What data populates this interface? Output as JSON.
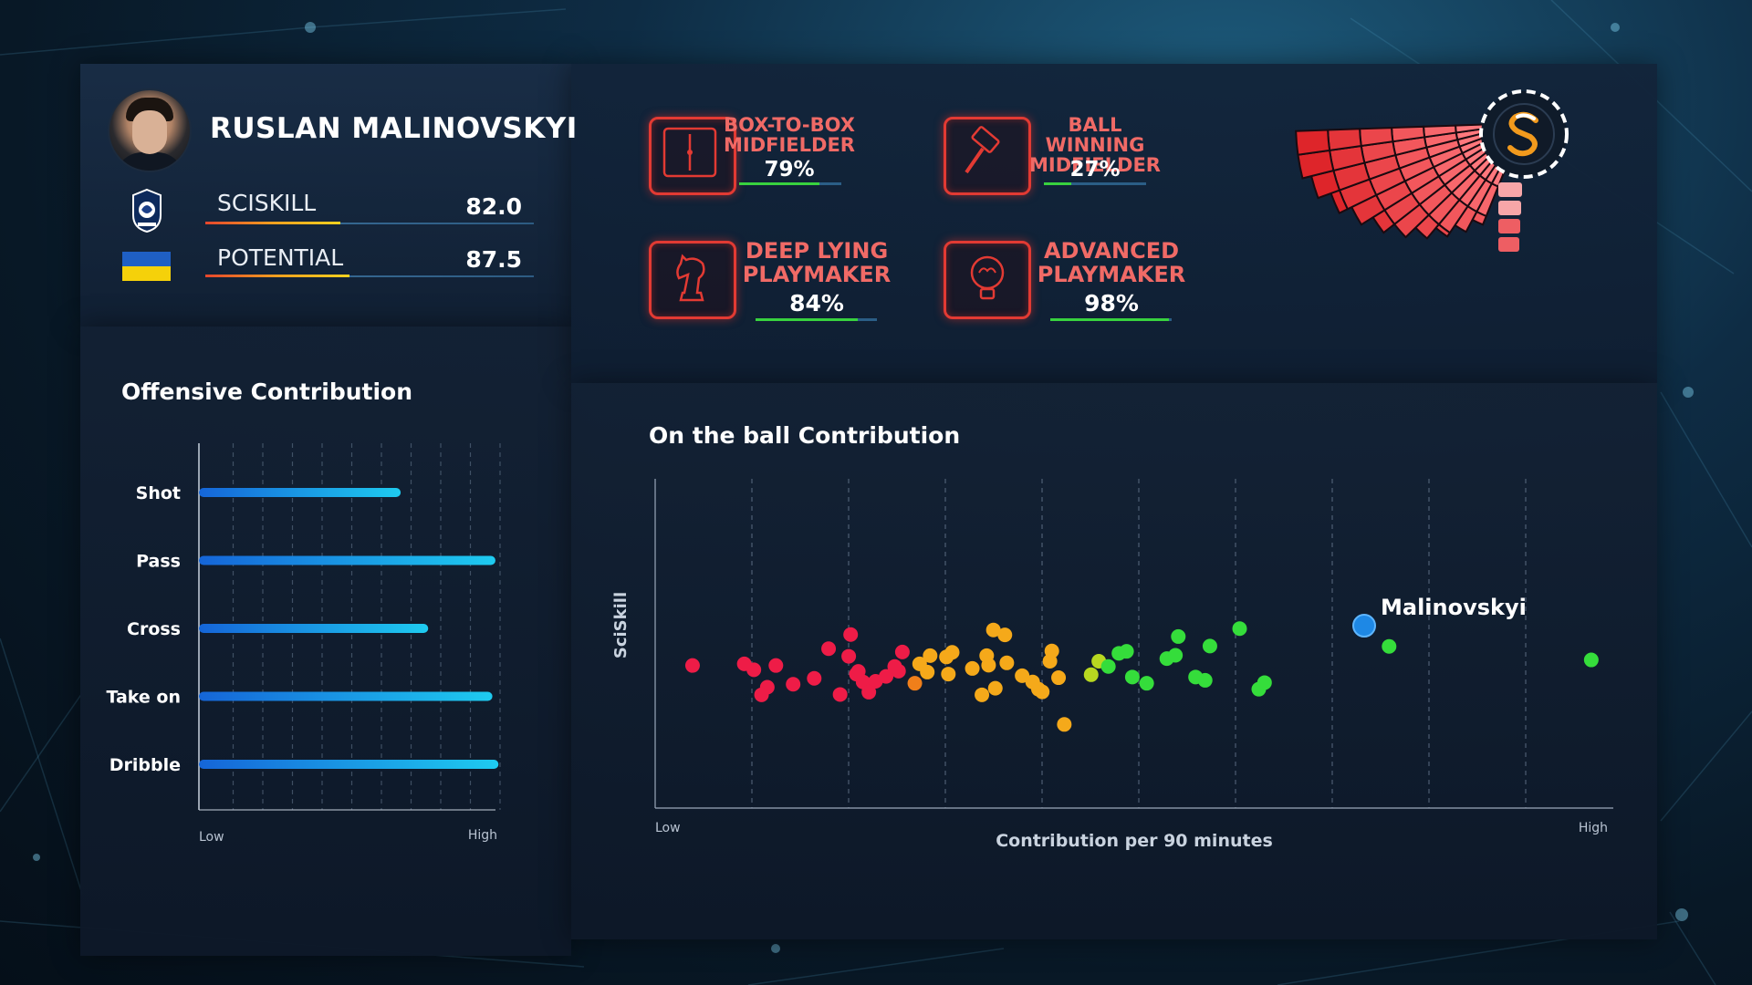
{
  "player": {
    "name": "RUSLAN MALINOVSKYI",
    "club_badge_icon": "atalanta-crest-icon",
    "flag_icon": "ukraine-flag-icon",
    "stats": [
      {
        "label": "SCISKILL",
        "value": "82.0",
        "level": 0.41
      },
      {
        "label": "POTENTIAL",
        "value": "87.5",
        "level": 0.44
      }
    ]
  },
  "roles": [
    {
      "title_line1": "BOX-TO-BOX",
      "title_line2": "MIDFIELDER",
      "percent": "79%",
      "level": 0.79,
      "icon": "box-to-box-icon"
    },
    {
      "title_line1": "BALL WINNING",
      "title_line2": "MIDFIELDER",
      "percent": "27%",
      "level": 0.27,
      "icon": "hammer-icon"
    },
    {
      "title_line1": "DEEP LYING",
      "title_line2": "PLAYMAKER",
      "percent": "84%",
      "level": 0.84,
      "icon": "chess-knight-icon"
    },
    {
      "title_line1": "ADVANCED",
      "title_line2": "PLAYMAKER",
      "percent": "98%",
      "level": 0.98,
      "icon": "brain-bulb-icon"
    }
  ],
  "logo_icon": "sciskill-logo-icon",
  "chart_data": [
    {
      "type": "bar",
      "orientation": "horizontal",
      "title": "Offensive Contribution",
      "categories": [
        "Shot",
        "Pass",
        "Cross",
        "Take on",
        "Dribble"
      ],
      "values": [
        0.66,
        0.97,
        0.75,
        0.96,
        0.98
      ],
      "xlim": [
        0,
        1
      ],
      "x_tick_labels": [
        "Low",
        "High"
      ],
      "grid": "vertical dashed",
      "color": "#1aa3e8"
    },
    {
      "type": "scatter",
      "title": "On the ball Contribution",
      "xlabel": "Contribution per 90 minutes",
      "ylabel": "SciSkill",
      "x_tick_labels": [
        "Low",
        "High"
      ],
      "xlim": [
        0,
        100
      ],
      "ylim": [
        0,
        100
      ],
      "grid": "vertical dashed",
      "highlight": {
        "name": "Malinovskyi",
        "x": 74.0,
        "y": 55.4,
        "color": "#1e88e5"
      },
      "series": [
        {
          "color": "#ee1c47",
          "points": [
            [
              3.9,
              43.3
            ],
            [
              9.3,
              43.8
            ],
            [
              12.6,
              43.3
            ],
            [
              10.3,
              42.0
            ],
            [
              11.7,
              36.7
            ],
            [
              11.1,
              34.4
            ],
            [
              14.4,
              37.6
            ],
            [
              16.6,
              39.4
            ],
            [
              18.1,
              48.4
            ],
            [
              19.3,
              34.5
            ],
            [
              20.2,
              46.1
            ],
            [
              21.2,
              41.5
            ],
            [
              20.4,
              52.7
            ],
            [
              21.7,
              38.3
            ],
            [
              21.0,
              40.7
            ],
            [
              23.0,
              38.5
            ],
            [
              22.3,
              35.2
            ],
            [
              24.1,
              40.0
            ],
            [
              25.4,
              41.6
            ],
            [
              25.0,
              43.0
            ],
            [
              25.8,
              47.4
            ]
          ]
        },
        {
          "color": "#f5a91a",
          "points": [
            [
              27.6,
              43.8
            ],
            [
              28.7,
              46.3
            ],
            [
              28.4,
              41.3
            ],
            [
              30.4,
              45.9
            ],
            [
              30.6,
              40.7
            ],
            [
              31.0,
              47.3
            ],
            [
              33.1,
              42.4
            ],
            [
              34.6,
              46.3
            ],
            [
              34.8,
              43.4
            ],
            [
              34.1,
              34.4
            ],
            [
              35.5,
              36.4
            ],
            [
              35.3,
              54.1
            ],
            [
              36.5,
              52.6
            ],
            [
              36.7,
              44.1
            ],
            [
              38.3,
              40.2
            ],
            [
              39.4,
              38.3
            ],
            [
              40.0,
              36.1
            ],
            [
              40.4,
              35.3
            ],
            [
              41.2,
              44.6
            ],
            [
              41.4,
              47.7
            ],
            [
              42.1,
              39.6
            ],
            [
              42.7,
              25.4
            ]
          ]
        },
        {
          "color": "#f07f1a",
          "points": [
            [
              27.1,
              37.9
            ]
          ]
        },
        {
          "color": "#b8d820",
          "points": [
            [
              45.5,
              40.5
            ],
            [
              46.3,
              44.6
            ]
          ]
        },
        {
          "color": "#35dd3b",
          "points": [
            [
              47.3,
              43.0
            ],
            [
              48.4,
              47.0
            ],
            [
              49.2,
              47.6
            ],
            [
              49.8,
              39.8
            ],
            [
              51.3,
              37.9
            ],
            [
              53.4,
              45.4
            ],
            [
              54.3,
              46.4
            ],
            [
              54.6,
              52.1
            ],
            [
              57.4,
              38.8
            ],
            [
              56.4,
              39.8
            ],
            [
              57.9,
              49.2
            ],
            [
              61.0,
              54.5
            ],
            [
              63.0,
              36.1
            ],
            [
              63.6,
              38.1
            ],
            [
              76.6,
              49.1
            ],
            [
              97.7,
              45.0
            ]
          ]
        }
      ]
    }
  ]
}
